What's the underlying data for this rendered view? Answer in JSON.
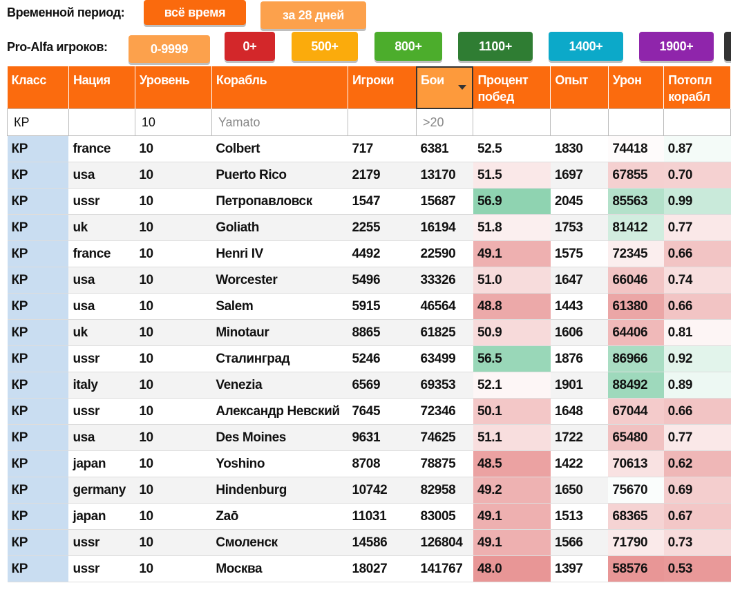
{
  "period": {
    "label": "Временной период:",
    "buttons": [
      "всё время",
      "за 28 дней"
    ]
  },
  "players": {
    "label": "Pro-Alfa игроков:",
    "buttons": [
      "0-9999",
      "0+",
      "500+",
      "800+",
      "1100+",
      "1400+",
      "1900+"
    ]
  },
  "table": {
    "columns": [
      "Класс",
      "Нация",
      "Уровень",
      "Корабль",
      "Игроки",
      "Бои",
      "Процент побед",
      "Опыт",
      "Урон",
      "Потопл корабл"
    ],
    "filters": [
      "КР",
      null,
      "10",
      "Yamato",
      null,
      ">20",
      null,
      null,
      null,
      null
    ],
    "rows": [
      [
        "КР",
        "france",
        "10",
        "Colbert",
        "717",
        "6381",
        "52.5",
        "1830",
        "74418",
        "0.87"
      ],
      [
        "КР",
        "usa",
        "10",
        "Puerto Rico",
        "2179",
        "13170",
        "51.5",
        "1697",
        "67855",
        "0.70"
      ],
      [
        "КР",
        "ussr",
        "10",
        "Петропавловск",
        "1547",
        "15687",
        "56.9",
        "2045",
        "85563",
        "0.99"
      ],
      [
        "КР",
        "uk",
        "10",
        "Goliath",
        "2255",
        "16194",
        "51.8",
        "1753",
        "81412",
        "0.77"
      ],
      [
        "КР",
        "france",
        "10",
        "Henri IV",
        "4492",
        "22590",
        "49.1",
        "1575",
        "72345",
        "0.66"
      ],
      [
        "КР",
        "usa",
        "10",
        "Worcester",
        "5496",
        "33326",
        "51.0",
        "1647",
        "66046",
        "0.74"
      ],
      [
        "КР",
        "usa",
        "10",
        "Salem",
        "5915",
        "46564",
        "48.8",
        "1443",
        "61380",
        "0.66"
      ],
      [
        "КР",
        "uk",
        "10",
        "Minotaur",
        "8865",
        "61825",
        "50.9",
        "1606",
        "64406",
        "0.81"
      ],
      [
        "КР",
        "ussr",
        "10",
        "Сталинград",
        "5246",
        "63499",
        "56.5",
        "1876",
        "86966",
        "0.92"
      ],
      [
        "КР",
        "italy",
        "10",
        "Venezia",
        "6569",
        "69353",
        "52.1",
        "1901",
        "88492",
        "0.89"
      ],
      [
        "КР",
        "ussr",
        "10",
        "Александр Невский",
        "7645",
        "72346",
        "50.1",
        "1648",
        "67044",
        "0.66"
      ],
      [
        "КР",
        "usa",
        "10",
        "Des Moines",
        "9631",
        "74625",
        "51.1",
        "1722",
        "65480",
        "0.77"
      ],
      [
        "КР",
        "japan",
        "10",
        "Yoshino",
        "8708",
        "78875",
        "48.5",
        "1422",
        "70613",
        "0.62"
      ],
      [
        "КР",
        "germany",
        "10",
        "Hindenburg",
        "10742",
        "82958",
        "49.2",
        "1650",
        "75670",
        "0.69"
      ],
      [
        "КР",
        "japan",
        "10",
        "Zaō",
        "11031",
        "83005",
        "49.1",
        "1513",
        "68365",
        "0.67"
      ],
      [
        "КР",
        "ussr",
        "10",
        "Смоленск",
        "14586",
        "126804",
        "49.1",
        "1566",
        "71790",
        "0.73"
      ],
      [
        "КР",
        "ussr",
        "10",
        "Москва",
        "18027",
        "141767",
        "48.0",
        "1397",
        "58576",
        "0.53"
      ]
    ]
  }
}
